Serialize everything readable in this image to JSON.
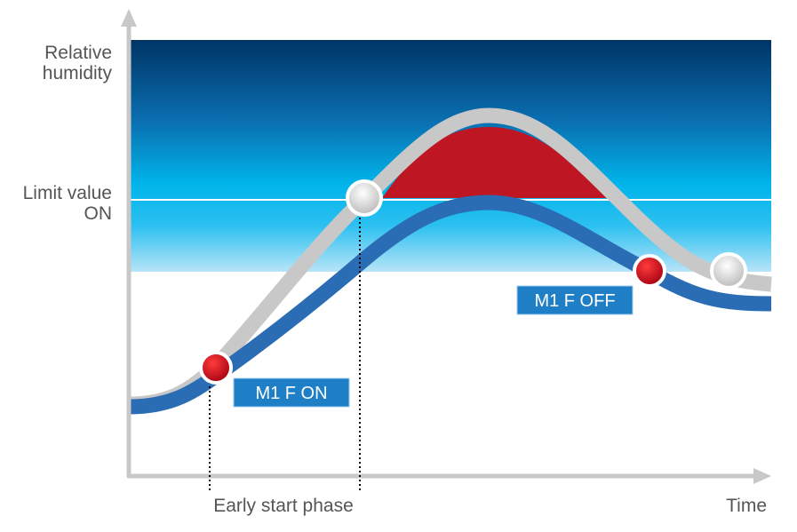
{
  "y_axis": {
    "label_lines": [
      "Relative",
      "humidity"
    ]
  },
  "limit": {
    "label_lines": [
      "Limit value",
      "ON"
    ]
  },
  "x_axis": {
    "label": "Time"
  },
  "phase": {
    "label": "Early start phase"
  },
  "events": [
    {
      "label": "M1 F ON"
    },
    {
      "label": "M1 F OFF"
    }
  ]
}
